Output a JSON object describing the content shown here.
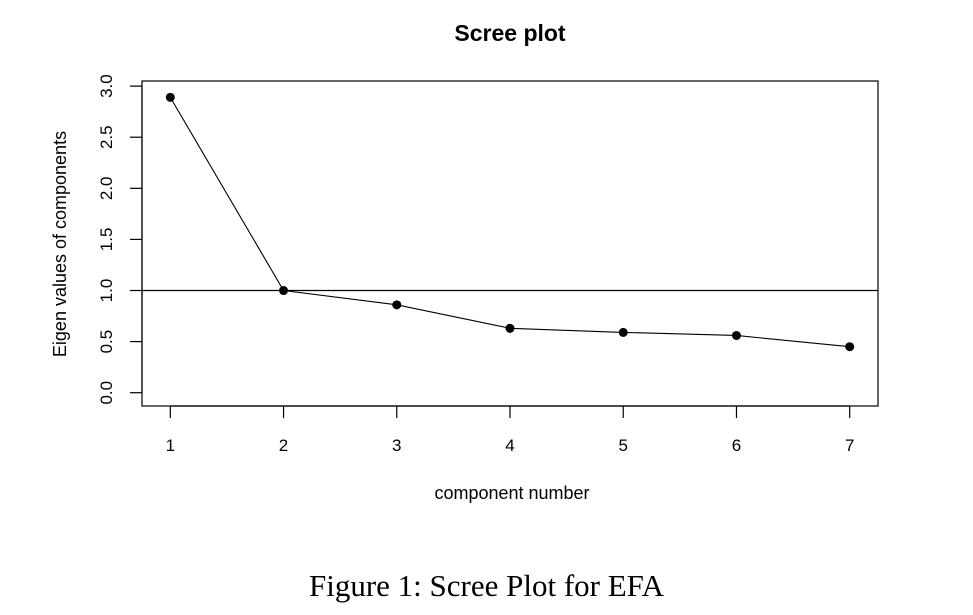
{
  "chart_data": {
    "type": "line",
    "title": "Scree plot",
    "xlabel": "component number",
    "ylabel": "Eigen values of components",
    "x": [
      1,
      2,
      3,
      4,
      5,
      6,
      7
    ],
    "series": [
      {
        "values": [
          2.89,
          1.0,
          0.86,
          0.63,
          0.59,
          0.56,
          0.45
        ]
      }
    ],
    "xticks": [
      "1",
      "2",
      "3",
      "4",
      "5",
      "6",
      "7"
    ],
    "yticks": [
      "0.0",
      "0.5",
      "1.0",
      "1.5",
      "2.0",
      "2.5",
      "3.0"
    ],
    "ylim": [
      -0.13,
      3.05
    ],
    "xlim": [
      0.75,
      7.25
    ],
    "reference_line_y": 1.0,
    "markers": true,
    "grid": false
  },
  "caption": "Figure 1: Scree Plot for EFA"
}
